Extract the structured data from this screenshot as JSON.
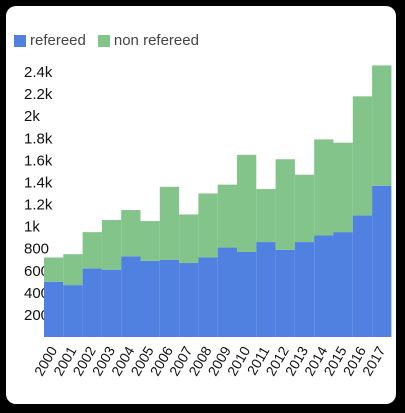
{
  "chart_data": {
    "type": "bar",
    "stacked": true,
    "categories": [
      "2000",
      "2001",
      "2002",
      "2003",
      "2004",
      "2005",
      "2006",
      "2007",
      "2008",
      "2009",
      "2010",
      "2011",
      "2012",
      "2013",
      "2014",
      "2015",
      "2016",
      "2017"
    ],
    "series": [
      {
        "name": "refereed",
        "color": "#5080e0",
        "values": [
          500,
          470,
          620,
          610,
          730,
          690,
          700,
          670,
          720,
          810,
          770,
          860,
          790,
          860,
          920,
          950,
          1100,
          1370
        ]
      },
      {
        "name": "non refereed",
        "color": "#82c489",
        "values": [
          220,
          280,
          330,
          450,
          420,
          360,
          660,
          440,
          580,
          570,
          880,
          480,
          820,
          610,
          870,
          810,
          1080,
          1090
        ]
      }
    ],
    "yticks": [
      200,
      400,
      600,
      800,
      1000,
      1200,
      1400,
      1600,
      1800,
      2000,
      2200,
      2400
    ],
    "ytick_labels": [
      "200",
      "400",
      "600",
      "800",
      "1k",
      "1.2k",
      "1.4k",
      "1.6k",
      "1.8k",
      "2k",
      "2.2k",
      "2.4k"
    ],
    "ylim": [
      0,
      2500
    ],
    "legend_position": "top-left",
    "grid": false
  }
}
